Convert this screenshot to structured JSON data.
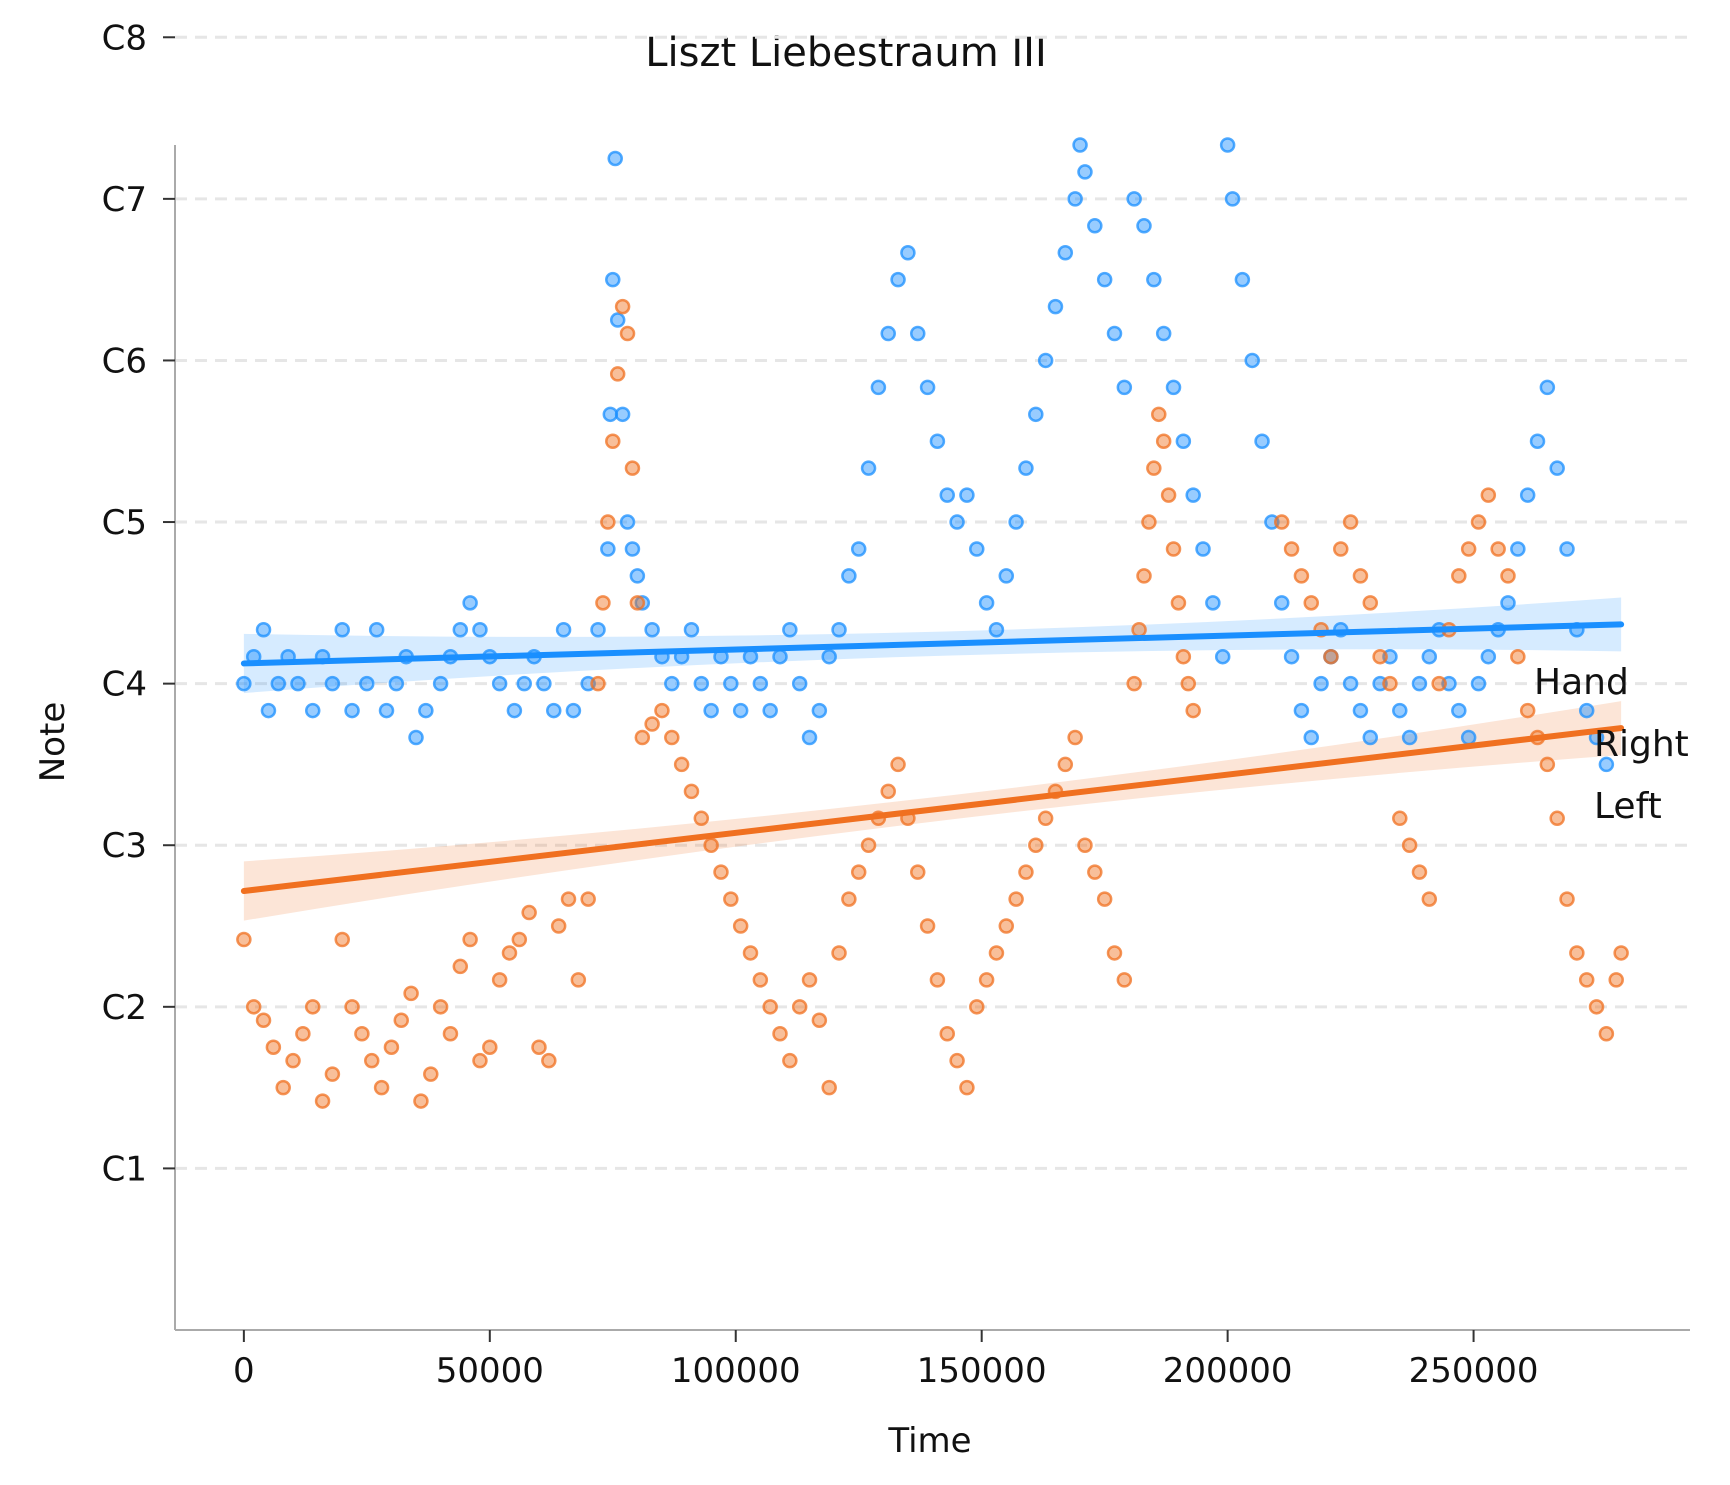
{
  "chart_data": {
    "type": "scatter",
    "title": "Liszt Liebestraum III",
    "xlabel": "Time",
    "ylabel": "Note",
    "xlim": [
      -14000,
      294000
    ],
    "ylim": [
      12,
      100
    ],
    "x_ticks": [
      0,
      50000,
      100000,
      150000,
      200000,
      250000
    ],
    "x_tick_labels": [
      "0",
      "50000",
      "100000",
      "150000",
      "200000",
      "250000"
    ],
    "y_ticks": [
      24,
      36,
      48,
      60,
      72,
      84,
      96,
      108
    ],
    "y_tick_labels": [
      "C1",
      "C2",
      "C3",
      "C4",
      "C5",
      "C6",
      "C7",
      "C8"
    ],
    "grid": {
      "y": true,
      "x": false,
      "style": "dashed"
    },
    "legend": {
      "title": "Hand",
      "placement": "right",
      "entries": [
        "Right",
        "Left"
      ]
    },
    "series": [
      {
        "name": "Right",
        "color": "#1a8fff",
        "trend": {
          "x": [
            0,
            280000
          ],
          "y": [
            61.5,
            64.4
          ]
        },
        "points": [
          [
            0,
            60
          ],
          [
            2000,
            62
          ],
          [
            4000,
            64
          ],
          [
            5000,
            58
          ],
          [
            7000,
            60
          ],
          [
            9000,
            62
          ],
          [
            11000,
            60
          ],
          [
            14000,
            58
          ],
          [
            16000,
            62
          ],
          [
            18000,
            60
          ],
          [
            20000,
            64
          ],
          [
            22000,
            58
          ],
          [
            25000,
            60
          ],
          [
            27000,
            64
          ],
          [
            29000,
            58
          ],
          [
            31000,
            60
          ],
          [
            33000,
            62
          ],
          [
            35000,
            56
          ],
          [
            37000,
            58
          ],
          [
            40000,
            60
          ],
          [
            42000,
            62
          ],
          [
            44000,
            64
          ],
          [
            46000,
            66
          ],
          [
            48000,
            64
          ],
          [
            50000,
            62
          ],
          [
            52000,
            60
          ],
          [
            55000,
            58
          ],
          [
            57000,
            60
          ],
          [
            59000,
            62
          ],
          [
            61000,
            60
          ],
          [
            63000,
            58
          ],
          [
            65000,
            64
          ],
          [
            67000,
            58
          ],
          [
            70000,
            60
          ],
          [
            72000,
            64
          ],
          [
            74000,
            70
          ],
          [
            74500,
            80
          ],
          [
            75000,
            90
          ],
          [
            75500,
            99
          ],
          [
            76000,
            87
          ],
          [
            77000,
            80
          ],
          [
            78000,
            72
          ],
          [
            79000,
            70
          ],
          [
            80000,
            68
          ],
          [
            81000,
            66
          ],
          [
            83000,
            64
          ],
          [
            85000,
            62
          ],
          [
            87000,
            60
          ],
          [
            89000,
            62
          ],
          [
            91000,
            64
          ],
          [
            93000,
            60
          ],
          [
            95000,
            58
          ],
          [
            97000,
            62
          ],
          [
            99000,
            60
          ],
          [
            101000,
            58
          ],
          [
            103000,
            62
          ],
          [
            105000,
            60
          ],
          [
            107000,
            58
          ],
          [
            109000,
            62
          ],
          [
            111000,
            64
          ],
          [
            113000,
            60
          ],
          [
            115000,
            56
          ],
          [
            117000,
            58
          ],
          [
            119000,
            62
          ],
          [
            121000,
            64
          ],
          [
            123000,
            68
          ],
          [
            125000,
            70
          ],
          [
            127000,
            76
          ],
          [
            129000,
            82
          ],
          [
            131000,
            86
          ],
          [
            133000,
            90
          ],
          [
            135000,
            92
          ],
          [
            137000,
            86
          ],
          [
            139000,
            82
          ],
          [
            141000,
            78
          ],
          [
            143000,
            74
          ],
          [
            145000,
            72
          ],
          [
            147000,
            74
          ],
          [
            149000,
            70
          ],
          [
            151000,
            66
          ],
          [
            153000,
            64
          ],
          [
            155000,
            68
          ],
          [
            157000,
            72
          ],
          [
            159000,
            76
          ],
          [
            161000,
            80
          ],
          [
            163000,
            84
          ],
          [
            165000,
            88
          ],
          [
            167000,
            92
          ],
          [
            169000,
            96
          ],
          [
            170000,
            100
          ],
          [
            171000,
            98
          ],
          [
            173000,
            94
          ],
          [
            175000,
            90
          ],
          [
            177000,
            86
          ],
          [
            179000,
            82
          ],
          [
            181000,
            96
          ],
          [
            183000,
            94
          ],
          [
            185000,
            90
          ],
          [
            187000,
            86
          ],
          [
            189000,
            82
          ],
          [
            191000,
            78
          ],
          [
            193000,
            74
          ],
          [
            195000,
            70
          ],
          [
            197000,
            66
          ],
          [
            199000,
            62
          ],
          [
            200000,
            100
          ],
          [
            201000,
            96
          ],
          [
            203000,
            90
          ],
          [
            205000,
            84
          ],
          [
            207000,
            78
          ],
          [
            209000,
            72
          ],
          [
            211000,
            66
          ],
          [
            213000,
            62
          ],
          [
            215000,
            58
          ],
          [
            217000,
            56
          ],
          [
            219000,
            60
          ],
          [
            221000,
            62
          ],
          [
            223000,
            64
          ],
          [
            225000,
            60
          ],
          [
            227000,
            58
          ],
          [
            229000,
            56
          ],
          [
            231000,
            60
          ],
          [
            233000,
            62
          ],
          [
            235000,
            58
          ],
          [
            237000,
            56
          ],
          [
            239000,
            60
          ],
          [
            241000,
            62
          ],
          [
            243000,
            64
          ],
          [
            245000,
            60
          ],
          [
            247000,
            58
          ],
          [
            249000,
            56
          ],
          [
            251000,
            60
          ],
          [
            253000,
            62
          ],
          [
            255000,
            64
          ],
          [
            257000,
            66
          ],
          [
            259000,
            70
          ],
          [
            261000,
            74
          ],
          [
            263000,
            78
          ],
          [
            265000,
            82
          ],
          [
            267000,
            76
          ],
          [
            269000,
            70
          ],
          [
            271000,
            64
          ],
          [
            273000,
            58
          ],
          [
            275000,
            56
          ],
          [
            277000,
            54
          ]
        ]
      },
      {
        "name": "Left",
        "color": "#f07020",
        "trend": {
          "x": [
            0,
            280000
          ],
          "y": [
            44.6,
            56.7
          ]
        },
        "points": [
          [
            0,
            41
          ],
          [
            2000,
            36
          ],
          [
            4000,
            35
          ],
          [
            6000,
            33
          ],
          [
            8000,
            30
          ],
          [
            10000,
            32
          ],
          [
            12000,
            34
          ],
          [
            14000,
            36
          ],
          [
            16000,
            29
          ],
          [
            18000,
            31
          ],
          [
            20000,
            41
          ],
          [
            22000,
            36
          ],
          [
            24000,
            34
          ],
          [
            26000,
            32
          ],
          [
            28000,
            30
          ],
          [
            30000,
            33
          ],
          [
            32000,
            35
          ],
          [
            34000,
            37
          ],
          [
            36000,
            29
          ],
          [
            38000,
            31
          ],
          [
            40000,
            36
          ],
          [
            42000,
            34
          ],
          [
            44000,
            39
          ],
          [
            46000,
            41
          ],
          [
            48000,
            32
          ],
          [
            50000,
            33
          ],
          [
            52000,
            38
          ],
          [
            54000,
            40
          ],
          [
            56000,
            41
          ],
          [
            58000,
            43
          ],
          [
            60000,
            33
          ],
          [
            62000,
            32
          ],
          [
            64000,
            42
          ],
          [
            66000,
            44
          ],
          [
            68000,
            38
          ],
          [
            70000,
            44
          ],
          [
            72000,
            60
          ],
          [
            73000,
            66
          ],
          [
            74000,
            72
          ],
          [
            75000,
            78
          ],
          [
            76000,
            83
          ],
          [
            77000,
            88
          ],
          [
            78000,
            86
          ],
          [
            79000,
            76
          ],
          [
            80000,
            66
          ],
          [
            81000,
            56
          ],
          [
            83000,
            57
          ],
          [
            85000,
            58
          ],
          [
            87000,
            56
          ],
          [
            89000,
            54
          ],
          [
            91000,
            52
          ],
          [
            93000,
            50
          ],
          [
            95000,
            48
          ],
          [
            97000,
            46
          ],
          [
            99000,
            44
          ],
          [
            101000,
            42
          ],
          [
            103000,
            40
          ],
          [
            105000,
            38
          ],
          [
            107000,
            36
          ],
          [
            109000,
            34
          ],
          [
            111000,
            32
          ],
          [
            113000,
            36
          ],
          [
            115000,
            38
          ],
          [
            117000,
            35
          ],
          [
            119000,
            30
          ],
          [
            121000,
            40
          ],
          [
            123000,
            44
          ],
          [
            125000,
            46
          ],
          [
            127000,
            48
          ],
          [
            129000,
            50
          ],
          [
            131000,
            52
          ],
          [
            133000,
            54
          ],
          [
            135000,
            50
          ],
          [
            137000,
            46
          ],
          [
            139000,
            42
          ],
          [
            141000,
            38
          ],
          [
            143000,
            34
          ],
          [
            145000,
            32
          ],
          [
            147000,
            30
          ],
          [
            149000,
            36
          ],
          [
            151000,
            38
          ],
          [
            153000,
            40
          ],
          [
            155000,
            42
          ],
          [
            157000,
            44
          ],
          [
            159000,
            46
          ],
          [
            161000,
            48
          ],
          [
            163000,
            50
          ],
          [
            165000,
            52
          ],
          [
            167000,
            54
          ],
          [
            169000,
            56
          ],
          [
            171000,
            48
          ],
          [
            173000,
            46
          ],
          [
            175000,
            44
          ],
          [
            177000,
            40
          ],
          [
            179000,
            38
          ],
          [
            181000,
            60
          ],
          [
            182000,
            64
          ],
          [
            183000,
            68
          ],
          [
            184000,
            72
          ],
          [
            185000,
            76
          ],
          [
            186000,
            80
          ],
          [
            187000,
            78
          ],
          [
            188000,
            74
          ],
          [
            189000,
            70
          ],
          [
            190000,
            66
          ],
          [
            191000,
            62
          ],
          [
            192000,
            60
          ],
          [
            193000,
            58
          ],
          [
            211000,
            72
          ],
          [
            213000,
            70
          ],
          [
            215000,
            68
          ],
          [
            217000,
            66
          ],
          [
            219000,
            64
          ],
          [
            221000,
            62
          ],
          [
            223000,
            70
          ],
          [
            225000,
            72
          ],
          [
            227000,
            68
          ],
          [
            229000,
            66
          ],
          [
            231000,
            62
          ],
          [
            233000,
            60
          ],
          [
            235000,
            50
          ],
          [
            237000,
            48
          ],
          [
            239000,
            46
          ],
          [
            241000,
            44
          ],
          [
            243000,
            60
          ],
          [
            245000,
            64
          ],
          [
            247000,
            68
          ],
          [
            249000,
            70
          ],
          [
            251000,
            72
          ],
          [
            253000,
            74
          ],
          [
            255000,
            70
          ],
          [
            257000,
            68
          ],
          [
            259000,
            62
          ],
          [
            261000,
            58
          ],
          [
            263000,
            56
          ],
          [
            265000,
            54
          ],
          [
            267000,
            50
          ],
          [
            269000,
            44
          ],
          [
            271000,
            40
          ],
          [
            273000,
            38
          ],
          [
            275000,
            36
          ],
          [
            277000,
            34
          ],
          [
            279000,
            38
          ],
          [
            280000,
            40
          ]
        ]
      }
    ]
  }
}
